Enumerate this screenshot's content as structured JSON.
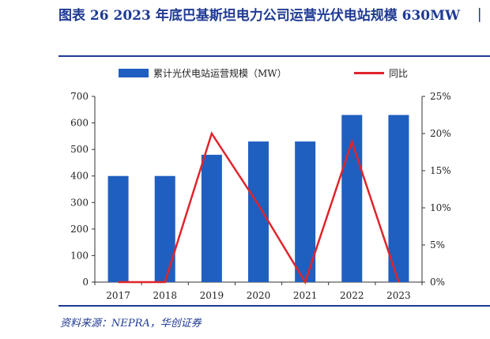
{
  "figure": {
    "title": "图表 26    2023 年底巴基斯坦电力公司运营光伏电站规模 630MW",
    "source": "资料来源：NEPRA，华创证券"
  },
  "chart_data": {
    "type": "bar",
    "categories": [
      "2017",
      "2018",
      "2019",
      "2020",
      "2021",
      "2022",
      "2023"
    ],
    "series": [
      {
        "name": "累计光伏电站运营规模（MW）",
        "kind": "bar",
        "axis": "left",
        "color": "#1f5fc0",
        "values": [
          400,
          400,
          480,
          530,
          530,
          630,
          630
        ]
      },
      {
        "name": "同比",
        "kind": "line",
        "axis": "right",
        "color": "#e0242c",
        "values": [
          0,
          0,
          20,
          10.4,
          0,
          18.9,
          0
        ]
      }
    ],
    "y_left": {
      "lim": [
        0,
        700
      ],
      "ticks": [
        0,
        100,
        200,
        300,
        400,
        500,
        600,
        700
      ]
    },
    "y_right": {
      "lim": [
        0,
        25
      ],
      "ticks": [
        "0%",
        "5%",
        "10%",
        "15%",
        "20%",
        "25%"
      ]
    },
    "legend": "top",
    "grid": false
  }
}
